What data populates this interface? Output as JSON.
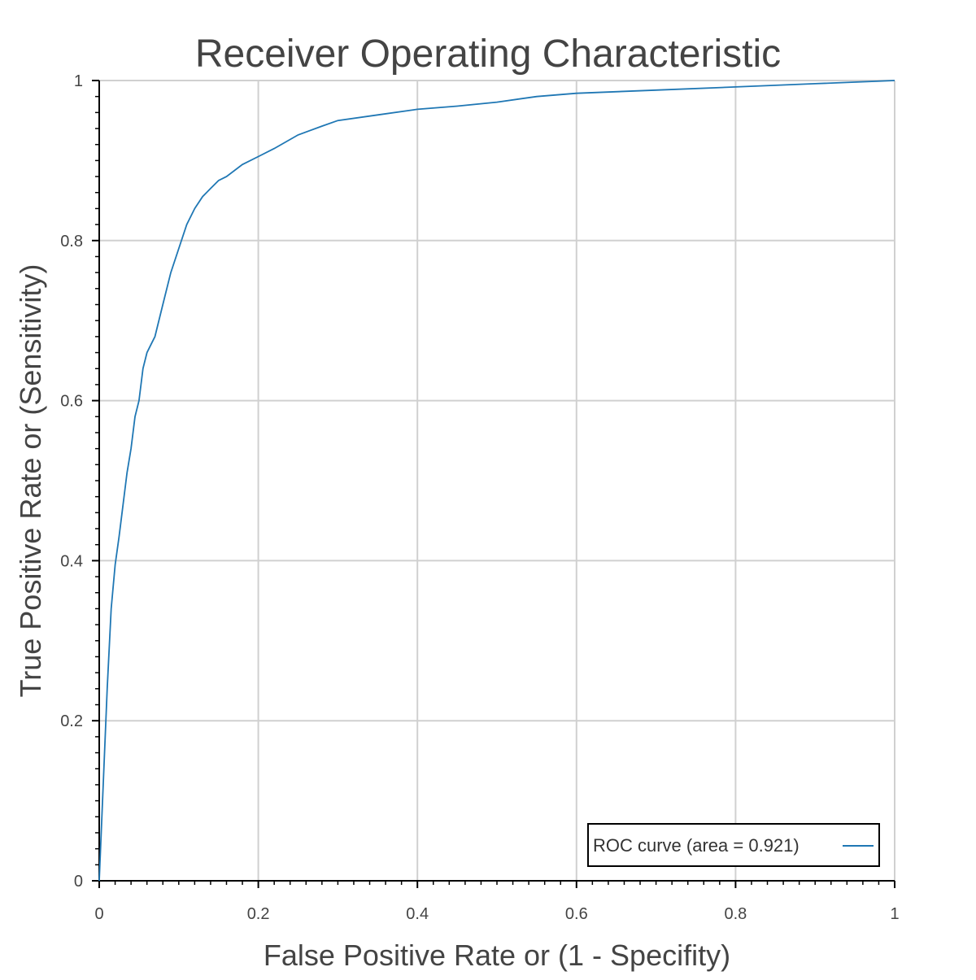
{
  "chart_data": {
    "type": "line",
    "title": "Receiver Operating Characteristic",
    "xlabel": "False Positive Rate or (1 - Specifity)",
    "ylabel": "True Positive Rate or (Sensitivity)",
    "xlim": [
      0,
      1
    ],
    "ylim": [
      0,
      1
    ],
    "x_ticks": [
      0,
      0.2,
      0.4,
      0.6,
      0.8,
      1
    ],
    "x_tick_labels": [
      "0",
      "0.2",
      "0.4",
      "0.6",
      "0.8",
      "1"
    ],
    "y_ticks": [
      0,
      0.2,
      0.4,
      0.6,
      0.8,
      1
    ],
    "y_tick_labels": [
      "0",
      "0.2",
      "0.4",
      "0.6",
      "0.8",
      "1"
    ],
    "grid": true,
    "legend_position": "bottom-right",
    "series": [
      {
        "name": "ROC curve (area = 0.921)",
        "color": "#1f77b4",
        "x": [
          0,
          0.005,
          0.01,
          0.015,
          0.02,
          0.025,
          0.03,
          0.035,
          0.04,
          0.045,
          0.05,
          0.055,
          0.06,
          0.065,
          0.07,
          0.08,
          0.09,
          0.1,
          0.11,
          0.12,
          0.13,
          0.14,
          0.15,
          0.16,
          0.18,
          0.2,
          0.22,
          0.25,
          0.28,
          0.3,
          0.35,
          0.4,
          0.45,
          0.5,
          0.55,
          0.6,
          0.7,
          0.8,
          0.9,
          1.0
        ],
        "y": [
          0,
          0.12,
          0.24,
          0.34,
          0.395,
          0.43,
          0.47,
          0.51,
          0.54,
          0.58,
          0.6,
          0.64,
          0.66,
          0.67,
          0.68,
          0.72,
          0.76,
          0.79,
          0.82,
          0.84,
          0.855,
          0.865,
          0.875,
          0.88,
          0.895,
          0.905,
          0.915,
          0.932,
          0.943,
          0.95,
          0.957,
          0.964,
          0.968,
          0.973,
          0.98,
          0.984,
          0.988,
          0.992,
          0.996,
          1.0
        ]
      }
    ]
  }
}
